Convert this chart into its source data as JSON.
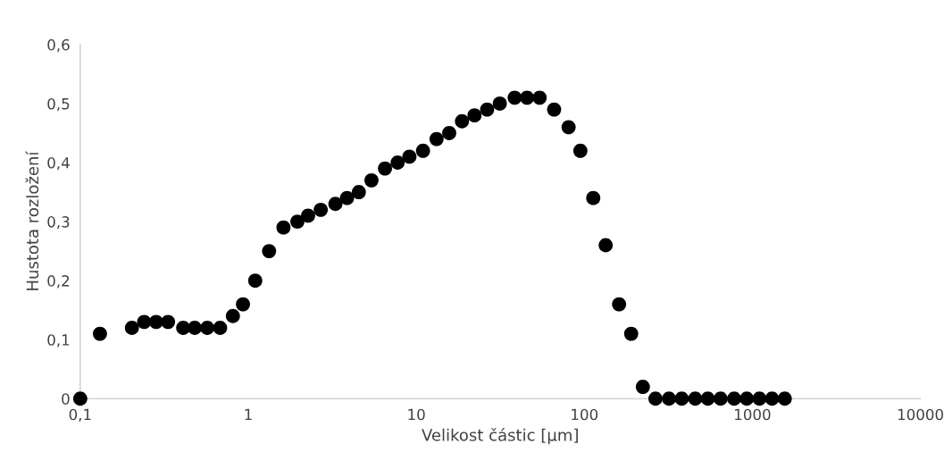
{
  "chart_data": {
    "type": "scatter",
    "xlabel": "Velikost částic [μm]",
    "ylabel": "Hustota rozložení",
    "log": "x",
    "grid": false,
    "legend": false,
    "marker": "circle",
    "xlim": [
      0.1,
      10000
    ],
    "xticks": [
      {
        "value": 0.1,
        "label": "0,1"
      },
      1,
      10,
      100,
      1000,
      10000
    ],
    "ylim": [
      0,
      0.6
    ],
    "yticks": [
      0,
      {
        "value": 0.1,
        "label": "0,1"
      },
      {
        "value": 0.2,
        "label": "0,2"
      },
      {
        "value": 0.3,
        "label": "0,3"
      },
      {
        "value": 0.4,
        "label": "0,4"
      },
      {
        "value": 0.5,
        "label": "0,5"
      },
      {
        "value": 0.6,
        "label": "0,6"
      }
    ],
    "series": [
      {
        "color": "#000000",
        "x": [
          0.1,
          0.131,
          0.203,
          0.24,
          0.283,
          0.333,
          0.41,
          0.48,
          0.57,
          0.68,
          0.81,
          0.93,
          1.1,
          1.33,
          1.62,
          1.96,
          2.27,
          2.7,
          3.3,
          3.87,
          4.55,
          5.41,
          6.51,
          7.74,
          9.1,
          10.96,
          13.2,
          15.7,
          18.7,
          22.2,
          26.4,
          31.4,
          38.5,
          45.6,
          54.2,
          66.1,
          80.6,
          94.7,
          113,
          134,
          161,
          190,
          223,
          265,
          319,
          380,
          457,
          543,
          647,
          779,
          926,
          1102,
          1310,
          1559
        ],
        "values": [
          0,
          0.11,
          0.12,
          0.13,
          0.13,
          0.13,
          0.12,
          0.12,
          0.12,
          0.12,
          0.14,
          0.16,
          0.2,
          0.25,
          0.29,
          0.3,
          0.31,
          0.32,
          0.33,
          0.34,
          0.35,
          0.37,
          0.39,
          0.4,
          0.41,
          0.42,
          0.44,
          0.45,
          0.47,
          0.48,
          0.49,
          0.5,
          0.51,
          0.51,
          0.51,
          0.49,
          0.46,
          0.42,
          0.34,
          0.26,
          0.16,
          0.11,
          0.02,
          0,
          0,
          0,
          0,
          0,
          0,
          0,
          0,
          0,
          0,
          0
        ]
      }
    ]
  }
}
